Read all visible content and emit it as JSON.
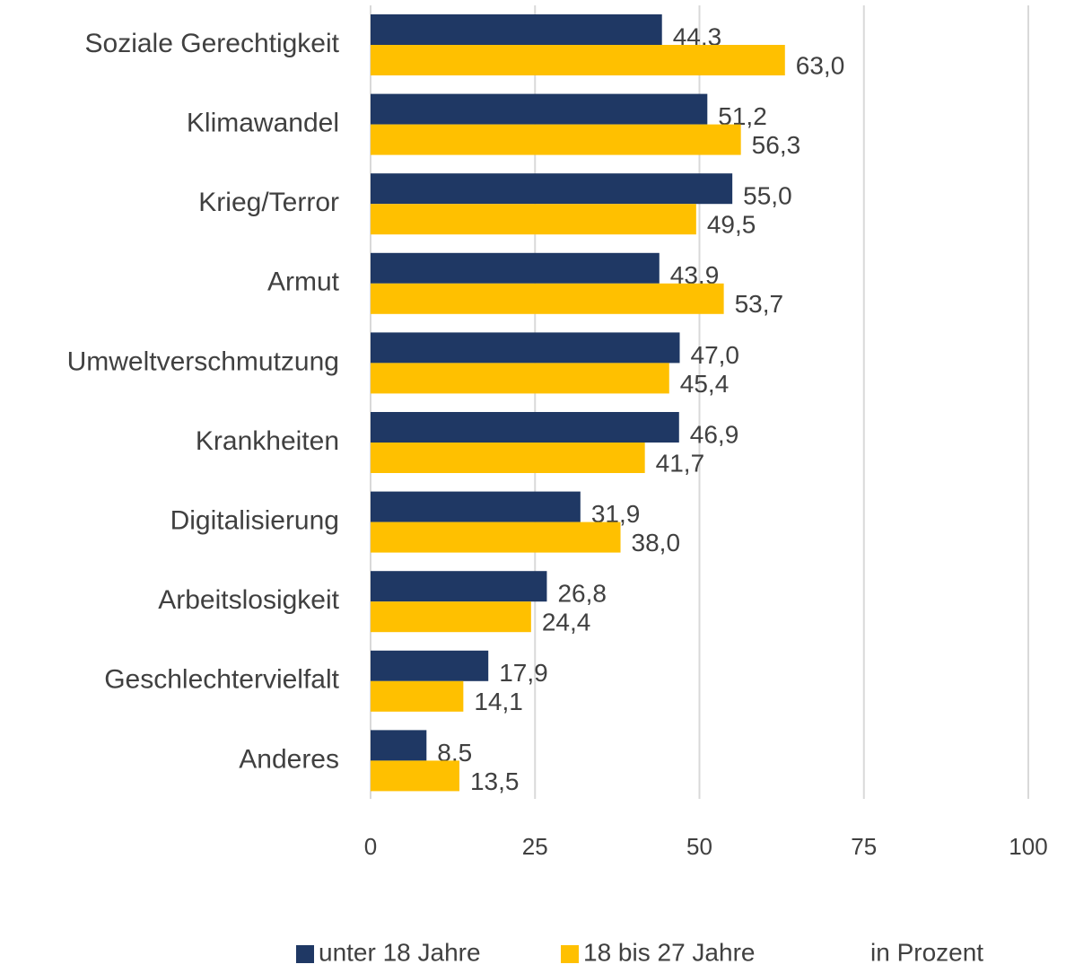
{
  "chart_data": {
    "type": "barh",
    "categories": [
      "Soziale Gerechtigkeit",
      "Klimawandel",
      "Krieg/Terror",
      "Armut",
      "Umweltverschmutzung",
      "Krankheiten",
      "Digitalisierung",
      "Arbeitslosigkeit",
      "Geschlechtervielfalt",
      "Anderes"
    ],
    "series": [
      {
        "name": "unter 18 Jahre",
        "color": "#1f3864",
        "values": [
          44.3,
          51.2,
          55.0,
          43.9,
          47.0,
          46.9,
          31.9,
          26.8,
          17.9,
          8.5
        ],
        "value_labels": [
          "44,3",
          "51,2",
          "55,0",
          "43,9",
          "47,0",
          "46,9",
          "31,9",
          "26,8",
          "17,9",
          "8,5"
        ]
      },
      {
        "name": "18 bis 27 Jahre",
        "color": "#ffc000",
        "values": [
          63.0,
          56.3,
          49.5,
          53.7,
          45.4,
          41.7,
          38.0,
          24.4,
          14.1,
          13.5
        ],
        "value_labels": [
          "63,0",
          "56,3",
          "49,5",
          "53,7",
          "45,4",
          "41,7",
          "38,0",
          "24,4",
          "14,1",
          "13,5"
        ]
      }
    ],
    "xlim": [
      0,
      100
    ],
    "xticks": [
      0,
      25,
      50,
      75,
      100
    ],
    "grid": true,
    "annotation": "in Prozent",
    "legend": "bottom"
  }
}
